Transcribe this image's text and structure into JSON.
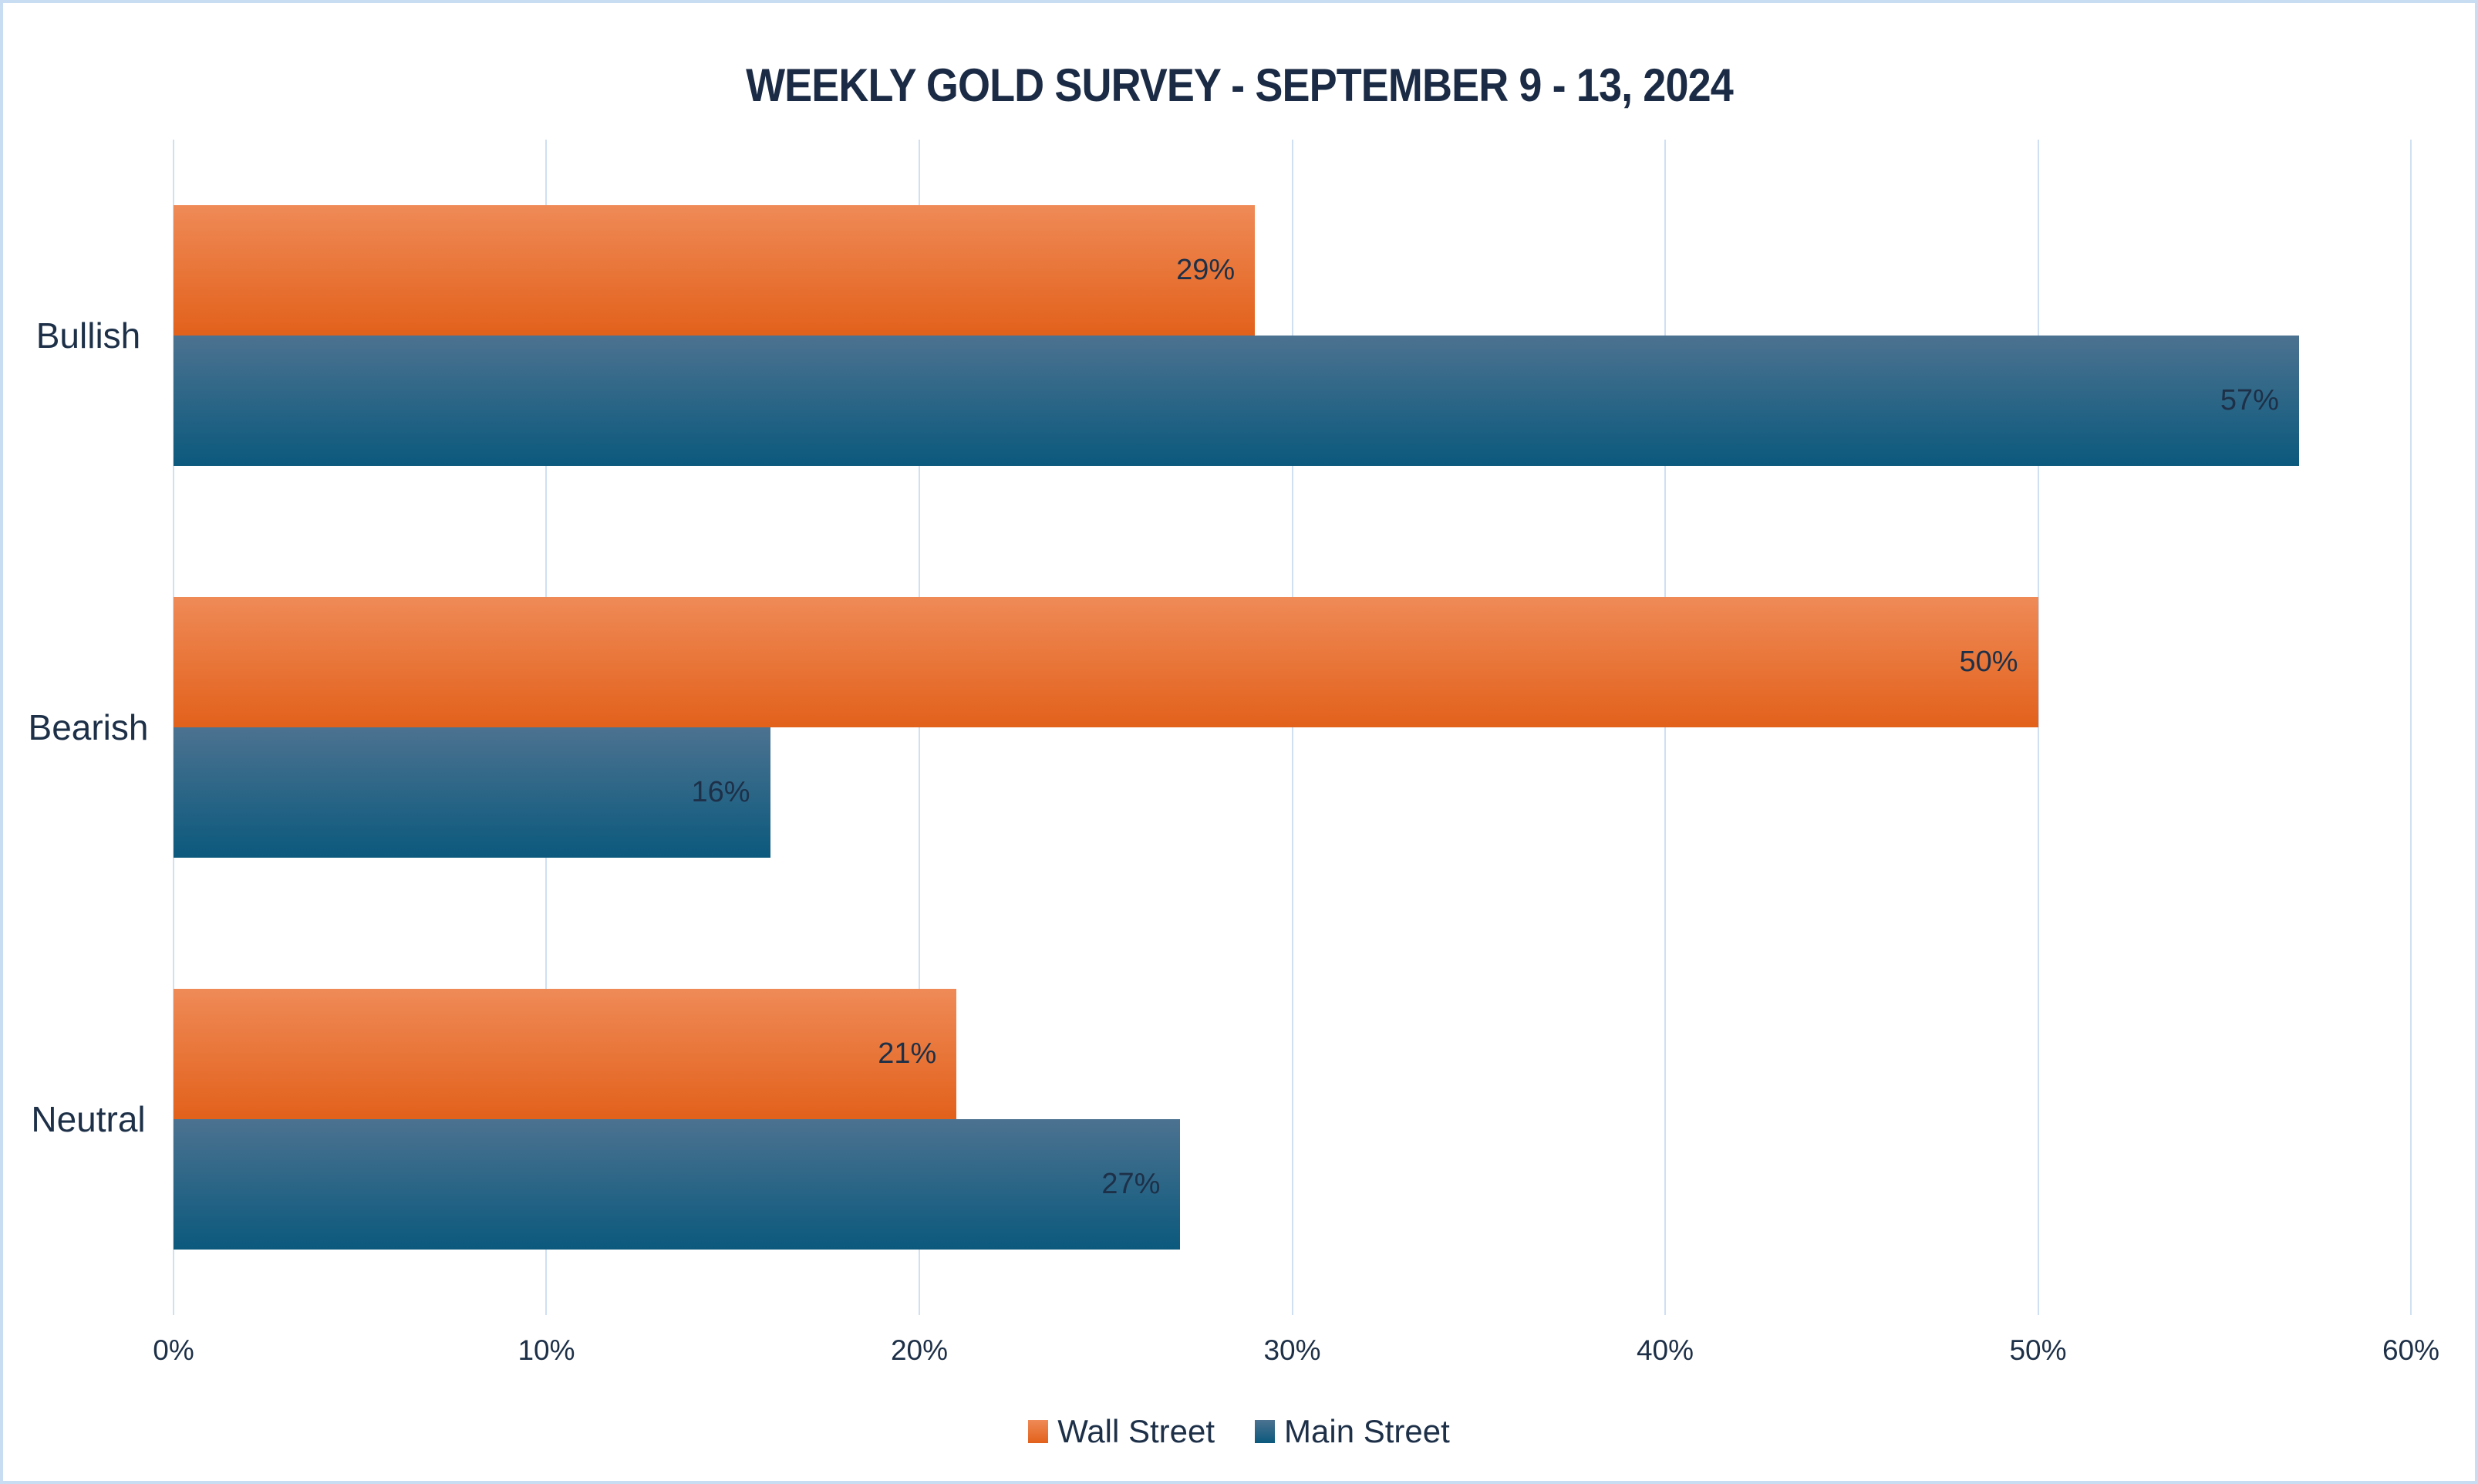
{
  "chart_data": {
    "type": "bar",
    "orientation": "horizontal",
    "title": "WEEKLY GOLD SURVEY - SEPTEMBER 9 - 13, 2024",
    "categories": [
      "Bullish",
      "Bearish",
      "Neutral"
    ],
    "series": [
      {
        "name": "Wall Street",
        "values": [
          29,
          50,
          21
        ],
        "value_labels": [
          "29%",
          "50%",
          "21%"
        ],
        "gradient_top": "#EF8A57",
        "gradient_bottom": "#E2611B"
      },
      {
        "name": "Main Street",
        "values": [
          57,
          16,
          27
        ],
        "value_labels": [
          "57%",
          "16%",
          "27%"
        ],
        "gradient_top": "#4C7290",
        "gradient_bottom": "#0B597D"
      }
    ],
    "x_axis": {
      "min": 0,
      "max": 60,
      "tick_step": 10,
      "tick_labels": [
        "0%",
        "10%",
        "20%",
        "30%",
        "40%",
        "50%",
        "60%"
      ]
    },
    "legend": {
      "position": "bottom",
      "entries": [
        "Wall Street",
        "Main Street"
      ]
    },
    "grid": true
  },
  "colors": {
    "background": "#ffffff",
    "frame_border": "#c9ddf2",
    "gridline": "#cfe0f2",
    "text": "#1d3048",
    "title_text": "#1b2b45"
  }
}
